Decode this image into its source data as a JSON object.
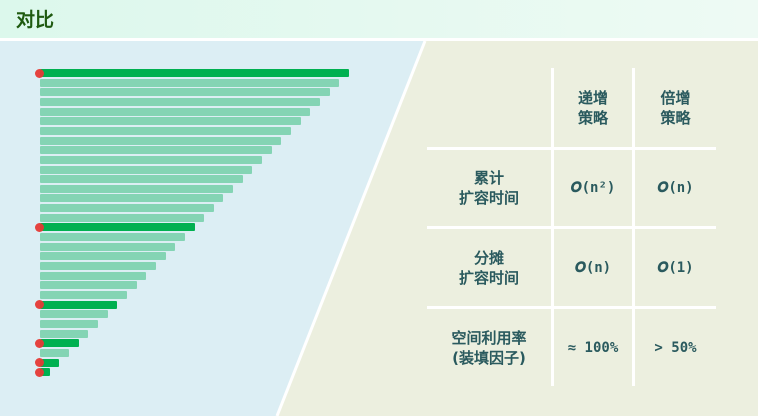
{
  "header": {
    "title": "对比"
  },
  "diagram": {
    "bars": [
      32,
      31,
      30,
      29,
      28,
      27,
      26,
      25,
      24,
      23,
      22,
      21,
      20,
      19,
      18,
      17,
      16,
      15,
      14,
      13,
      12,
      11,
      10,
      9,
      8,
      7,
      6,
      5,
      4,
      3,
      2,
      1
    ],
    "highlighted": [
      32,
      16,
      8,
      4,
      2,
      1
    ],
    "colors": {
      "bar": "#84d4b4",
      "highlight": "#00b050",
      "marker": "#e53935"
    }
  },
  "table": {
    "columns": [
      "递增\n策略",
      "倍增\n策略"
    ],
    "rows": [
      {
        "label": "累计\n扩容时间",
        "values": [
          "𝑶(n²)",
          "𝑶(n)"
        ]
      },
      {
        "label": "分摊\n扩容时间",
        "values": [
          "𝑶(n)",
          "𝑶(1)"
        ]
      },
      {
        "label": "空间利用率\n(装填因子)",
        "values": [
          "≈ 100%",
          "> 50%"
        ]
      }
    ]
  }
}
